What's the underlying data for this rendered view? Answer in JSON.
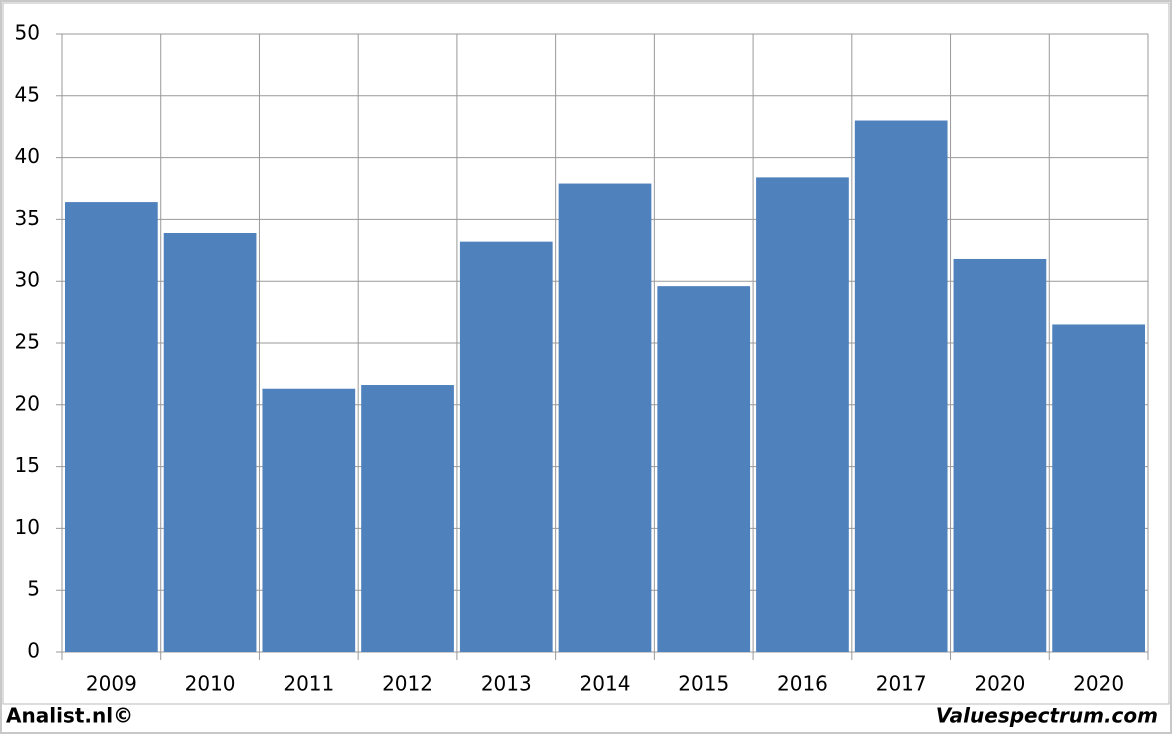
{
  "chart_data": {
    "type": "bar",
    "categories": [
      "2009",
      "2010",
      "2011",
      "2012",
      "2013",
      "2014",
      "2015",
      "2016",
      "2017",
      "2020",
      "2020"
    ],
    "values": [
      36.4,
      33.9,
      21.3,
      21.6,
      33.2,
      37.9,
      29.6,
      38.4,
      43.0,
      31.8,
      26.5
    ],
    "color": "#4f81bd",
    "ylim": [
      0,
      50
    ],
    "yticks": [
      0,
      5,
      10,
      15,
      20,
      25,
      30,
      35,
      40,
      45,
      50
    ],
    "grid": true,
    "annotations": [
      "Analist.nl©",
      "Valuespectrum.com"
    ]
  }
}
